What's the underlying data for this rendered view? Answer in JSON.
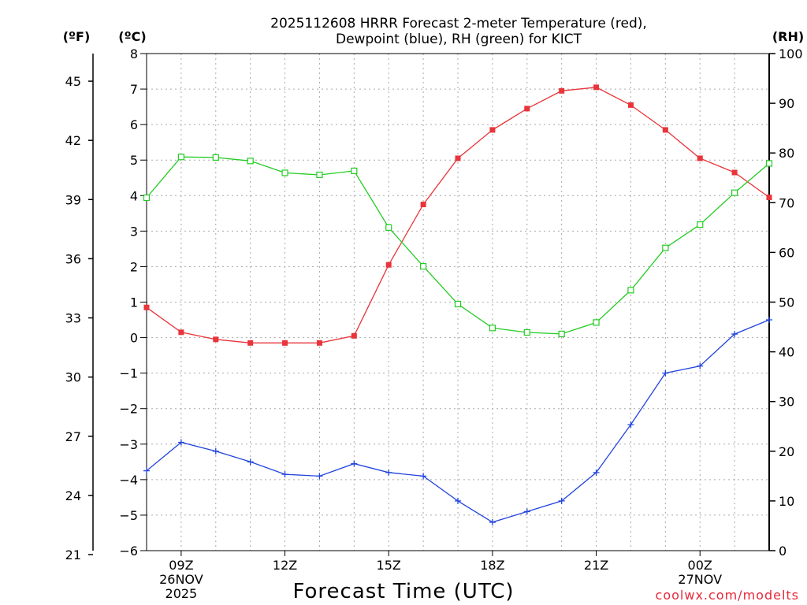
{
  "chart_data": {
    "type": "line",
    "title": [
      "2025112608 HRRR Forecast 2-meter Temperature (red),",
      "Dewpoint (blue), RH (green) for KICT"
    ],
    "xlabel": "Forecast Time (UTC)",
    "units": {
      "fahrenheit": "(ºF)",
      "celsius": "(ºC)",
      "rh": "(RH)"
    },
    "credit": "coolwx.com/modelts",
    "grid": true,
    "hours": [
      8,
      9,
      10,
      11,
      12,
      13,
      14,
      15,
      16,
      17,
      18,
      19,
      20,
      21,
      22,
      23,
      24,
      25,
      26
    ],
    "xlim": [
      8,
      26
    ],
    "x_ticks": [
      {
        "hour": 9,
        "lines": [
          "09Z",
          "26NOV",
          "2025"
        ]
      },
      {
        "hour": 12,
        "lines": [
          "12Z"
        ]
      },
      {
        "hour": 15,
        "lines": [
          "15Z"
        ]
      },
      {
        "hour": 18,
        "lines": [
          "18Z"
        ]
      },
      {
        "hour": 21,
        "lines": [
          "21Z"
        ]
      },
      {
        "hour": 24,
        "lines": [
          "00Z",
          "27NOV"
        ]
      }
    ],
    "y_celsius": {
      "min": -6,
      "max": 8,
      "ticks": [
        -6,
        -5,
        -4,
        -3,
        -2,
        -1,
        0,
        1,
        2,
        3,
        4,
        5,
        6,
        7,
        8
      ]
    },
    "y_fahrenheit": {
      "ticks": [
        21,
        24,
        27,
        30,
        33,
        36,
        39,
        42,
        45
      ]
    },
    "y_rh": {
      "min": 0,
      "max": 100,
      "ticks": [
        0,
        10,
        20,
        30,
        40,
        50,
        60,
        70,
        80,
        90,
        100
      ]
    },
    "series": [
      {
        "name": "Temperature",
        "axis": "celsius",
        "color": "#e8343a",
        "marker": "filled-square",
        "values": [
          0.85,
          0.15,
          -0.05,
          -0.15,
          -0.15,
          -0.15,
          0.05,
          2.05,
          3.75,
          5.05,
          5.85,
          6.45,
          6.95,
          7.05,
          6.55,
          5.85,
          5.05,
          4.65,
          3.95
        ]
      },
      {
        "name": "Dewpoint",
        "axis": "celsius",
        "color": "#2244dd",
        "marker": "plus",
        "values": [
          -3.75,
          -2.95,
          -3.2,
          -3.5,
          -3.85,
          -3.9,
          -3.55,
          -3.8,
          -3.9,
          -4.6,
          -5.2,
          -4.9,
          -4.6,
          -3.8,
          -2.45,
          -1.0,
          -0.8,
          0.1,
          0.5
        ]
      },
      {
        "name": "RH",
        "axis": "rh",
        "color": "#22cc22",
        "marker": "open-square",
        "values": [
          71,
          79.2,
          79.1,
          78.4,
          76.0,
          75.6,
          76.4,
          65.0,
          57.2,
          49.6,
          44.8,
          43.9,
          43.6,
          45.9,
          52.4,
          60.9,
          65.6,
          72.0,
          77.9
        ]
      }
    ]
  }
}
